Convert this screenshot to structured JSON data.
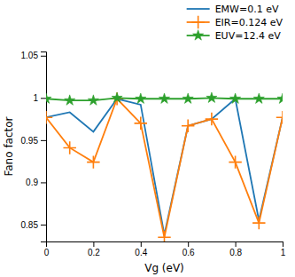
{
  "chart_data": {
    "type": "line",
    "x": [
      0,
      0.1,
      0.2,
      0.3,
      0.4,
      0.5,
      0.6,
      0.7,
      0.8,
      0.9,
      1.0
    ],
    "series": [
      {
        "name": "EMW=0.1 eV",
        "marker": "none",
        "line_style": "solid",
        "values": [
          0.977,
          0.983,
          0.96,
          0.999,
          0.992,
          0.838,
          0.967,
          0.975,
          0.999,
          0.855,
          0.977
        ]
      },
      {
        "name": "EIR=0.124 eV",
        "marker": "plus",
        "line_style": "solid",
        "values": [
          0.977,
          0.941,
          0.924,
          0.999,
          0.97,
          0.835,
          0.967,
          0.975,
          0.924,
          0.852,
          0.977
        ]
      },
      {
        "name": "EUV=12.4 eV",
        "marker": "star",
        "line_style": "solid",
        "values": [
          0.999,
          0.997,
          0.997,
          1.0,
          0.999,
          0.999,
          0.999,
          1.0,
          0.999,
          0.999,
          0.999
        ]
      }
    ],
    "xlabel": "Vg (eV)",
    "ylabel": "Fano factor",
    "xlim": [
      0,
      1.0
    ],
    "ylim": [
      0.83,
      1.055
    ],
    "xticks": [
      0,
      0.2,
      0.4,
      0.6,
      0.8,
      1.0
    ],
    "yticks": [
      0.85,
      0.9,
      0.95,
      1.0,
      1.05
    ],
    "grid": false,
    "legend": "upper right"
  }
}
